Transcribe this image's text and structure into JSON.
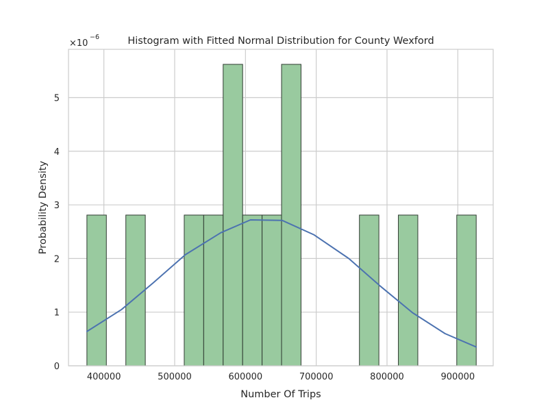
{
  "chart_data": {
    "type": "bar",
    "title": "Histogram with Fitted Normal Distribution for County Wexford",
    "xlabel": "Number Of Trips",
    "ylabel": "Probability Density",
    "y_scale_label": "×10",
    "y_scale_exponent": "−6",
    "xlim": [
      350000,
      950000
    ],
    "ylim": [
      0,
      5.9
    ],
    "grid": true,
    "x_ticks": [
      {
        "value": 400000,
        "label": "400000"
      },
      {
        "value": 500000,
        "label": "500000"
      },
      {
        "value": 600000,
        "label": "600000"
      },
      {
        "value": 700000,
        "label": "700000"
      },
      {
        "value": 800000,
        "label": "800000"
      },
      {
        "value": 900000,
        "label": "900000"
      }
    ],
    "y_ticks": [
      {
        "value": 0,
        "label": "0"
      },
      {
        "value": 1,
        "label": "1"
      },
      {
        "value": 2,
        "label": "2"
      },
      {
        "value": 3,
        "label": "3"
      },
      {
        "value": 4,
        "label": "4"
      },
      {
        "value": 5,
        "label": "5"
      }
    ],
    "histogram": {
      "bin_edges": [
        376000,
        403500,
        431000,
        458500,
        486000,
        513500,
        541000,
        568500,
        596000,
        623500,
        651000,
        678500,
        706000,
        733500,
        761000,
        788500,
        816000,
        843500,
        871000,
        898500,
        926000
      ],
      "densities": [
        2.81,
        0,
        2.81,
        0,
        0,
        2.81,
        2.81,
        5.62,
        2.81,
        2.81,
        5.62,
        0,
        0,
        0,
        2.81,
        0,
        2.81,
        0,
        0,
        2.81
      ],
      "fill_color": "#99ca9f",
      "edge_color": "#2f3a31"
    },
    "fitted_curve": {
      "x": [
        376000,
        425000,
        470000,
        515000,
        565000,
        607000,
        652000,
        697000,
        746000,
        790000,
        836000,
        882000,
        926000
      ],
      "y": [
        0.64,
        1.05,
        1.55,
        2.07,
        2.48,
        2.72,
        2.71,
        2.44,
        2.0,
        1.49,
        0.99,
        0.6,
        0.35
      ],
      "color": "#4c72b0"
    }
  }
}
